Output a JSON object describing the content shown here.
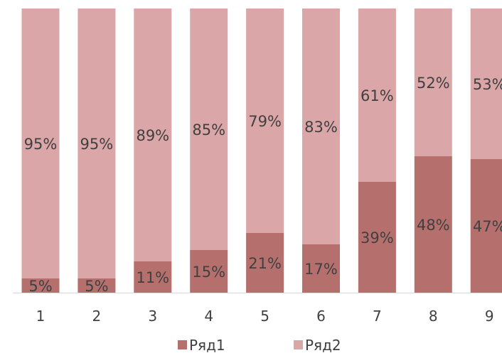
{
  "chart_data": {
    "type": "bar",
    "stacked": "percent",
    "categories": [
      "1",
      "2",
      "3",
      "4",
      "5",
      "6",
      "7",
      "8",
      "9"
    ],
    "series": [
      {
        "name": "Ряд1",
        "values": [
          5,
          5,
          11,
          15,
          21,
          17,
          39,
          48,
          47
        ],
        "labels": [
          "5%",
          "5%",
          "11%",
          "15%",
          "21%",
          "17%",
          "39%",
          "48%",
          "47%"
        ],
        "color": "#b5706e"
      },
      {
        "name": "Ряд2",
        "values": [
          95,
          95,
          89,
          85,
          79,
          83,
          61,
          52,
          53
        ],
        "labels": [
          "95%",
          "95%",
          "89%",
          "85%",
          "79%",
          "83%",
          "61%",
          "52%",
          "53%"
        ],
        "color": "#dba6a7"
      }
    ],
    "ylim": [
      0,
      100
    ],
    "grid": false,
    "legend_position": "bottom",
    "axis_color": "#d9d9d9",
    "label_color": "#404040"
  }
}
